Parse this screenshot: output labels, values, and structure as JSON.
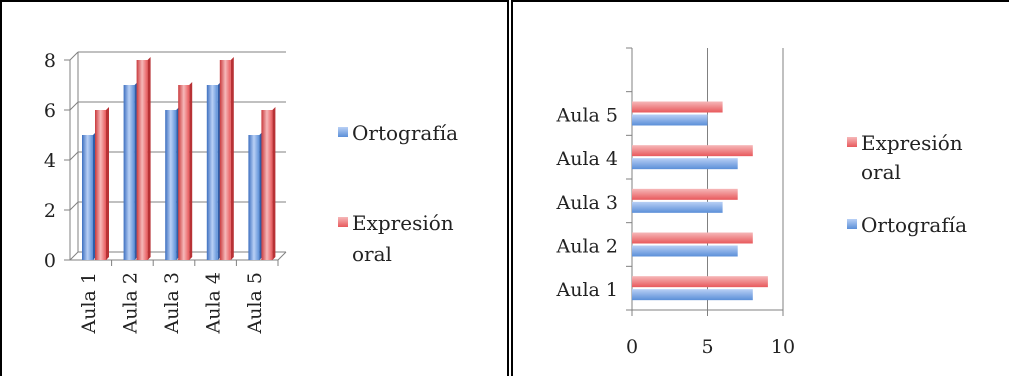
{
  "colors": {
    "ortografia": "#5b8fd8",
    "expresion": "#e8595c",
    "axis": "#808080",
    "grid": "#808080",
    "text": "#222222"
  },
  "chart_data": [
    {
      "type": "bar",
      "orientation": "vertical",
      "categories": [
        "Aula 1",
        "Aula 2",
        "Aula 3",
        "Aula 4",
        "Aula 5"
      ],
      "series": [
        {
          "name": "Ortografía",
          "values": [
            5,
            7,
            6,
            7,
            5
          ]
        },
        {
          "name": "Expresión oral",
          "values": [
            6,
            8,
            7,
            8,
            6
          ]
        }
      ],
      "ylim": [
        0,
        8
      ],
      "yticks": [
        "0",
        "2",
        "4",
        "6",
        "8"
      ],
      "grid": true,
      "legend": {
        "placement": "right",
        "entries": [
          {
            "lines": [
              "Ortografía"
            ]
          },
          {
            "lines": [
              "Expresión",
              "oral"
            ]
          }
        ]
      }
    },
    {
      "type": "bar",
      "orientation": "horizontal",
      "categories": [
        "Aula 1",
        "Aula 2",
        "Aula 3",
        "Aula 4",
        "Aula 5"
      ],
      "series": [
        {
          "name": "Ortografía",
          "values": [
            8,
            7,
            6,
            7,
            5
          ]
        },
        {
          "name": "Expresión oral",
          "values": [
            9,
            8,
            7,
            8,
            6
          ]
        }
      ],
      "xlim": [
        0,
        10
      ],
      "xticks": [
        "0",
        "5",
        "10"
      ],
      "grid": true,
      "legend": {
        "placement": "right",
        "entries": [
          {
            "lines": [
              "Expresión",
              "oral"
            ]
          },
          {
            "lines": [
              "Ortografía"
            ]
          }
        ]
      }
    }
  ]
}
